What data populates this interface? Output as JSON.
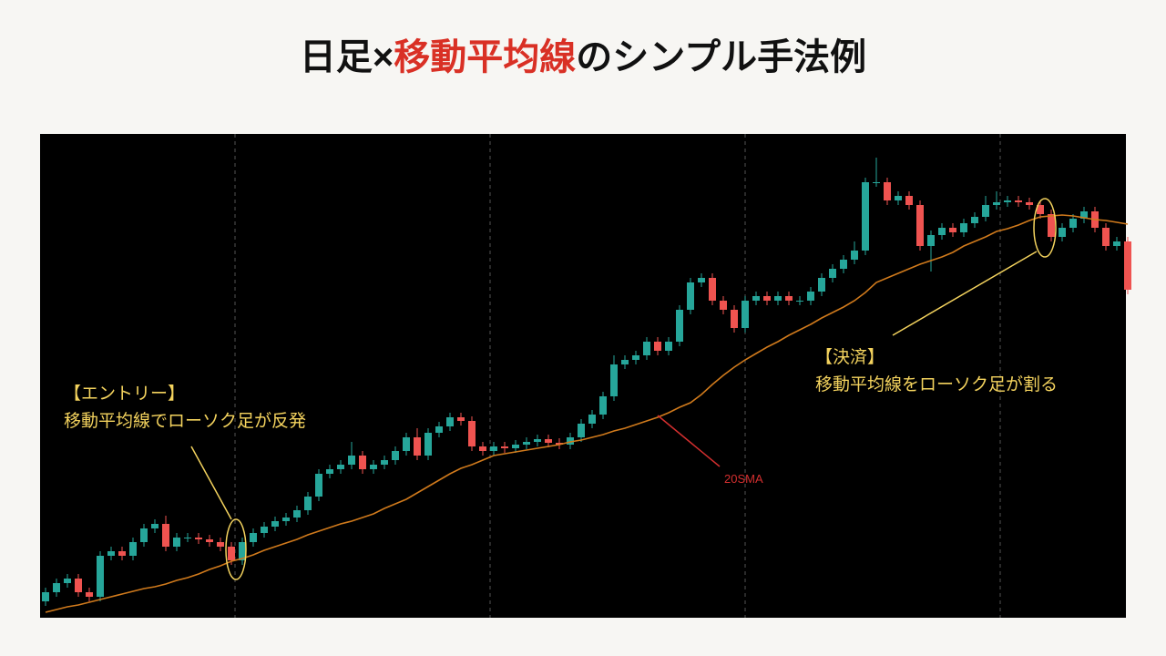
{
  "chart_data": {
    "type": "candlestick",
    "title_parts": [
      {
        "text": "日足×",
        "color": "#111111"
      },
      {
        "text": "移動平均線",
        "color": "#d93025"
      },
      {
        "text": "のシンプル手法例",
        "color": "#111111"
      }
    ],
    "annotations": {
      "entry_heading": "【エントリー】",
      "entry_text": "移動平均線でローソク足が反発",
      "exit_heading": "【決済】",
      "exit_text": "移動平均線をローソク足が割る",
      "sma_label": "20SMA"
    },
    "ylim": [
      0,
      530
    ],
    "up_color": "#26a69a",
    "down_color": "#ef5350",
    "open": [
      18,
      28,
      38,
      43,
      28,
      23,
      68,
      73,
      68,
      83,
      98,
      103,
      78,
      88,
      88,
      86,
      83,
      78,
      63,
      83,
      93,
      100,
      106,
      110,
      118,
      133,
      158,
      163,
      168,
      178,
      163,
      168,
      173,
      183,
      198,
      178,
      203,
      210,
      220,
      216,
      188,
      183,
      188,
      186,
      190,
      193,
      196,
      192,
      190,
      198,
      213,
      223,
      243,
      278,
      283,
      288,
      303,
      293,
      303,
      338,
      368,
      373,
      348,
      338,
      318,
      348,
      353,
      348,
      353,
      348,
      348,
      358,
      373,
      383,
      393,
      403,
      478,
      478,
      458,
      463,
      453,
      408,
      420,
      428,
      423,
      433,
      440,
      453,
      456,
      458,
      456,
      453,
      443,
      418,
      428,
      438,
      446,
      428,
      408,
      413
    ],
    "high": [
      33,
      43,
      48,
      48,
      33,
      73,
      78,
      78,
      88,
      103,
      108,
      112,
      93,
      93,
      93,
      91,
      88,
      83,
      88,
      98,
      105,
      111,
      115,
      123,
      138,
      163,
      168,
      173,
      193,
      183,
      173,
      178,
      188,
      203,
      208,
      208,
      215,
      225,
      225,
      221,
      193,
      193,
      193,
      195,
      198,
      201,
      201,
      197,
      203,
      218,
      228,
      248,
      288,
      288,
      293,
      308,
      308,
      308,
      343,
      373,
      378,
      378,
      353,
      343,
      353,
      358,
      358,
      358,
      358,
      353,
      363,
      378,
      388,
      398,
      413,
      483,
      505,
      483,
      468,
      468,
      458,
      425,
      433,
      433,
      438,
      445,
      463,
      468,
      463,
      463,
      461,
      458,
      448,
      433,
      443,
      451,
      451,
      433,
      418,
      418
    ],
    "low": [
      13,
      23,
      33,
      23,
      18,
      18,
      63,
      63,
      63,
      78,
      93,
      73,
      73,
      83,
      81,
      78,
      73,
      58,
      58,
      78,
      88,
      95,
      101,
      105,
      113,
      128,
      153,
      158,
      163,
      158,
      158,
      163,
      168,
      178,
      173,
      173,
      198,
      205,
      211,
      183,
      178,
      178,
      181,
      181,
      185,
      188,
      187,
      185,
      185,
      193,
      208,
      218,
      238,
      273,
      278,
      283,
      288,
      288,
      298,
      333,
      363,
      343,
      333,
      313,
      313,
      343,
      343,
      343,
      343,
      343,
      343,
      353,
      368,
      378,
      388,
      398,
      473,
      453,
      453,
      448,
      403,
      380,
      415,
      418,
      418,
      428,
      435,
      448,
      451,
      451,
      448,
      438,
      413,
      413,
      423,
      433,
      423,
      403,
      403,
      355
    ],
    "close": [
      28,
      38,
      43,
      28,
      23,
      68,
      73,
      68,
      83,
      98,
      103,
      78,
      88,
      88,
      86,
      83,
      78,
      63,
      83,
      93,
      100,
      106,
      110,
      118,
      133,
      158,
      163,
      168,
      178,
      163,
      168,
      173,
      183,
      198,
      178,
      203,
      210,
      220,
      216,
      188,
      183,
      188,
      186,
      190,
      193,
      196,
      192,
      190,
      198,
      213,
      223,
      243,
      278,
      283,
      288,
      303,
      293,
      303,
      338,
      368,
      373,
      348,
      338,
      318,
      348,
      353,
      348,
      353,
      348,
      348,
      358,
      373,
      383,
      393,
      403,
      478,
      478,
      458,
      463,
      453,
      408,
      420,
      428,
      423,
      433,
      440,
      453,
      456,
      458,
      456,
      453,
      443,
      418,
      428,
      438,
      446,
      428,
      408,
      413,
      360
    ],
    "series": [
      {
        "name": "20SMA",
        "color": "#d07a1c",
        "values": [
          6,
          9,
          12,
          14,
          17,
          20,
          23,
          26,
          29,
          32,
          34,
          37,
          41,
          44,
          48,
          53,
          57,
          62,
          65,
          69,
          74,
          78,
          82,
          86,
          91,
          95,
          99,
          103,
          106,
          110,
          114,
          120,
          125,
          130,
          137,
          144,
          151,
          158,
          164,
          168,
          173,
          178,
          180,
          182,
          184,
          186,
          188,
          190,
          193,
          195,
          198,
          201,
          205,
          208,
          212,
          216,
          220,
          225,
          231,
          236,
          245,
          256,
          266,
          275,
          283,
          290,
          297,
          303,
          310,
          316,
          322,
          329,
          335,
          341,
          348,
          357,
          368,
          373,
          378,
          383,
          388,
          392,
          396,
          401,
          408,
          413,
          418,
          424,
          427,
          431,
          436,
          440,
          441,
          442,
          441,
          439,
          437,
          436,
          434,
          432
        ]
      }
    ]
  }
}
